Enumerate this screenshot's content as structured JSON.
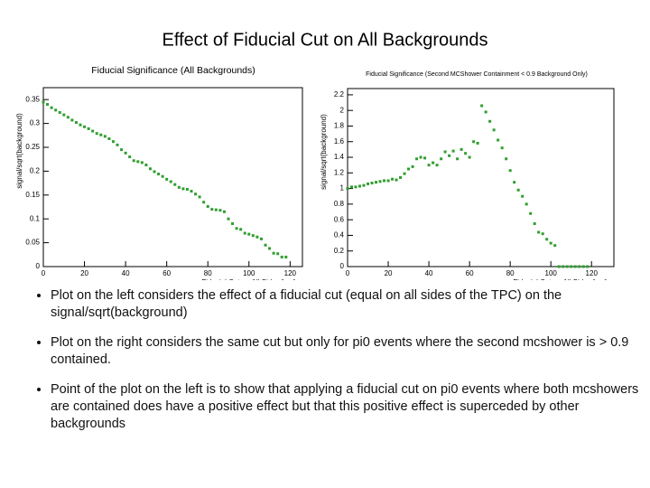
{
  "title": "Effect of Fiducial Cut on All Backgrounds",
  "chart_data": [
    {
      "type": "scatter",
      "title": "Fiducial Significance (All Backgrounds)",
      "x_label": "Fiducial Cut on All Sides [cm]",
      "y_label": "signal/sqrt(background)",
      "color": "#2f9e2f",
      "x": [
        0,
        2,
        4,
        6,
        8,
        10,
        12,
        14,
        16,
        18,
        20,
        22,
        24,
        26,
        28,
        30,
        32,
        34,
        36,
        38,
        40,
        42,
        44,
        46,
        48,
        50,
        52,
        54,
        56,
        58,
        60,
        62,
        64,
        66,
        68,
        70,
        72,
        74,
        76,
        78,
        80,
        82,
        84,
        86,
        88,
        90,
        92,
        94,
        96,
        98,
        100,
        102,
        104,
        106,
        108,
        110,
        112,
        114,
        116,
        118
      ],
      "values": [
        0.345,
        0.34,
        0.333,
        0.328,
        0.323,
        0.318,
        0.313,
        0.307,
        0.302,
        0.297,
        0.293,
        0.289,
        0.284,
        0.279,
        0.276,
        0.273,
        0.268,
        0.262,
        0.255,
        0.245,
        0.238,
        0.23,
        0.222,
        0.22,
        0.218,
        0.213,
        0.205,
        0.199,
        0.194,
        0.189,
        0.183,
        0.178,
        0.172,
        0.166,
        0.163,
        0.162,
        0.158,
        0.152,
        0.146,
        0.135,
        0.126,
        0.12,
        0.119,
        0.118,
        0.115,
        0.1,
        0.09,
        0.08,
        0.078,
        0.07,
        0.068,
        0.065,
        0.062,
        0.058,
        0.045,
        0.038,
        0.028,
        0.027,
        0.02,
        0.02
      ],
      "xlim": [
        0,
        126
      ],
      "xticks": [
        0,
        20,
        40,
        60,
        80,
        100,
        120
      ],
      "ylim": [
        0,
        0.375
      ],
      "yticks": [
        0,
        0.05,
        0.1,
        0.15,
        0.2,
        0.25,
        0.3,
        0.35
      ]
    },
    {
      "type": "scatter",
      "title": "Fiducial Significance (Second MCShower Containment < 0.9 Background Only)",
      "x_label": "Fiducial Cut on All Sides [cm]",
      "y_label": "signal/sqrt(background)",
      "color": "#2f9e2f",
      "x": [
        0,
        2,
        4,
        6,
        8,
        10,
        12,
        14,
        16,
        18,
        20,
        22,
        24,
        26,
        28,
        30,
        32,
        34,
        36,
        38,
        40,
        42,
        44,
        46,
        48,
        50,
        52,
        54,
        56,
        58,
        60,
        62,
        64,
        66,
        68,
        70,
        72,
        74,
        76,
        78,
        80,
        82,
        84,
        86,
        88,
        90,
        92,
        94,
        96,
        98,
        100,
        102,
        104,
        106,
        108,
        110,
        112,
        114,
        116,
        118
      ],
      "values": [
        1.0,
        1.02,
        1.02,
        1.03,
        1.04,
        1.06,
        1.07,
        1.08,
        1.09,
        1.1,
        1.1,
        1.12,
        1.11,
        1.14,
        1.19,
        1.25,
        1.28,
        1.38,
        1.4,
        1.39,
        1.3,
        1.33,
        1.3,
        1.38,
        1.47,
        1.42,
        1.48,
        1.38,
        1.5,
        1.45,
        1.4,
        1.6,
        1.58,
        2.06,
        1.98,
        1.86,
        1.75,
        1.62,
        1.52,
        1.38,
        1.23,
        1.08,
        0.98,
        0.9,
        0.8,
        0.68,
        0.55,
        0.44,
        0.42,
        0.35,
        0.3,
        0.27,
        0,
        0,
        0,
        0,
        0,
        0,
        0,
        0
      ],
      "xlim": [
        0,
        131
      ],
      "xticks": [
        0,
        20,
        40,
        60,
        80,
        100,
        120
      ],
      "ylim": [
        0,
        2.28
      ],
      "yticks": [
        0,
        0.2,
        0.4,
        0.6,
        0.8,
        1,
        1.2,
        1.4,
        1.6,
        1.8,
        2,
        2.2
      ]
    }
  ],
  "bullets": [
    "Plot on the left considers the effect of a fiducial cut (equal on all sides of the TPC) on the signal/sqrt(background)",
    "Plot on the right considers the same cut but only for pi0 events where the second mcshower is > 0.9 contained.",
    "Point of the plot on the left is to show that applying a fiducial cut on pi0 events where both mcshowers are contained does have a positive effect but that this positive effect is superceded by other backgrounds"
  ]
}
